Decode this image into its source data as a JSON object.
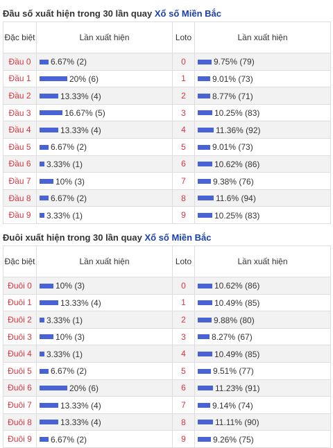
{
  "colors": {
    "bar": "#4a63d4",
    "label_red": "#d9363e",
    "link_blue": "#1a3faa"
  },
  "sections": [
    {
      "title_prefix": "Đầu số xuất hiện trong 30 lần quay",
      "title_link": "Xổ số Miền Bắc",
      "headers": {
        "col1": "Đặc biệt",
        "col2": "Lần xuất hiện",
        "col3": "Loto",
        "col4": "Lần xuất hiện"
      },
      "rows": [
        {
          "label": "Đầu 0",
          "pct": 6.67,
          "text": "6.67% (2)",
          "loto": "0",
          "loto_pct": 9.75,
          "loto_text": "9.75% (79)"
        },
        {
          "label": "Đầu 1",
          "pct": 20,
          "text": "20% (6)",
          "loto": "1",
          "loto_pct": 9.01,
          "loto_text": "9.01% (73)"
        },
        {
          "label": "Đầu 2",
          "pct": 13.33,
          "text": "13.33% (4)",
          "loto": "2",
          "loto_pct": 8.77,
          "loto_text": "8.77% (71)"
        },
        {
          "label": "Đầu 3",
          "pct": 16.67,
          "text": "16.67% (5)",
          "loto": "3",
          "loto_pct": 10.25,
          "loto_text": "10.25% (83)"
        },
        {
          "label": "Đầu 4",
          "pct": 13.33,
          "text": "13.33% (4)",
          "loto": "4",
          "loto_pct": 11.36,
          "loto_text": "11.36% (92)"
        },
        {
          "label": "Đầu 5",
          "pct": 6.67,
          "text": "6.67% (2)",
          "loto": "5",
          "loto_pct": 9.01,
          "loto_text": "9.01% (73)"
        },
        {
          "label": "Đầu 6",
          "pct": 3.33,
          "text": "3.33% (1)",
          "loto": "6",
          "loto_pct": 10.62,
          "loto_text": "10.62% (86)"
        },
        {
          "label": "Đầu 7",
          "pct": 10,
          "text": "10% (3)",
          "loto": "7",
          "loto_pct": 9.38,
          "loto_text": "9.38% (76)"
        },
        {
          "label": "Đầu 8",
          "pct": 6.67,
          "text": "6.67% (2)",
          "loto": "8",
          "loto_pct": 11.6,
          "loto_text": "11.6% (94)"
        },
        {
          "label": "Đầu 9",
          "pct": 3.33,
          "text": "3.33% (1)",
          "loto": "9",
          "loto_pct": 10.25,
          "loto_text": "10.25% (83)"
        }
      ]
    },
    {
      "title_prefix": "Đuôi xuất hiện trong 30 lần quay",
      "title_link": "Xổ số Miền Bắc",
      "headers": {
        "col1": "Đặc biệt",
        "col2": "Lần xuất hiện",
        "col3": "Loto",
        "col4": "Lần xuất hiện"
      },
      "rows": [
        {
          "label": "Đuôi 0",
          "pct": 10,
          "text": "10% (3)",
          "loto": "0",
          "loto_pct": 10.62,
          "loto_text": "10.62% (86)"
        },
        {
          "label": "Đuôi 1",
          "pct": 13.33,
          "text": "13.33% (4)",
          "loto": "1",
          "loto_pct": 10.49,
          "loto_text": "10.49% (85)"
        },
        {
          "label": "Đuôi 2",
          "pct": 3.33,
          "text": "3.33% (1)",
          "loto": "2",
          "loto_pct": 9.88,
          "loto_text": "9.88% (80)"
        },
        {
          "label": "Đuôi 3",
          "pct": 10,
          "text": "10% (3)",
          "loto": "3",
          "loto_pct": 8.27,
          "loto_text": "8.27% (67)"
        },
        {
          "label": "Đuôi 4",
          "pct": 3.33,
          "text": "3.33% (1)",
          "loto": "4",
          "loto_pct": 10.49,
          "loto_text": "10.49% (85)"
        },
        {
          "label": "Đuôi 5",
          "pct": 6.67,
          "text": "6.67% (2)",
          "loto": "5",
          "loto_pct": 9.51,
          "loto_text": "9.51% (77)"
        },
        {
          "label": "Đuôi 6",
          "pct": 20,
          "text": "20% (6)",
          "loto": "6",
          "loto_pct": 11.23,
          "loto_text": "11.23% (91)"
        },
        {
          "label": "Đuôi 7",
          "pct": 13.33,
          "text": "13.33% (4)",
          "loto": "7",
          "loto_pct": 9.14,
          "loto_text": "9.14% (74)"
        },
        {
          "label": "Đuôi 8",
          "pct": 13.33,
          "text": "13.33% (4)",
          "loto": "8",
          "loto_pct": 11.11,
          "loto_text": "11.11% (90)"
        },
        {
          "label": "Đuôi 9",
          "pct": 6.67,
          "text": "6.67% (2)",
          "loto": "9",
          "loto_pct": 9.26,
          "loto_text": "9.26% (75)"
        }
      ]
    }
  ]
}
